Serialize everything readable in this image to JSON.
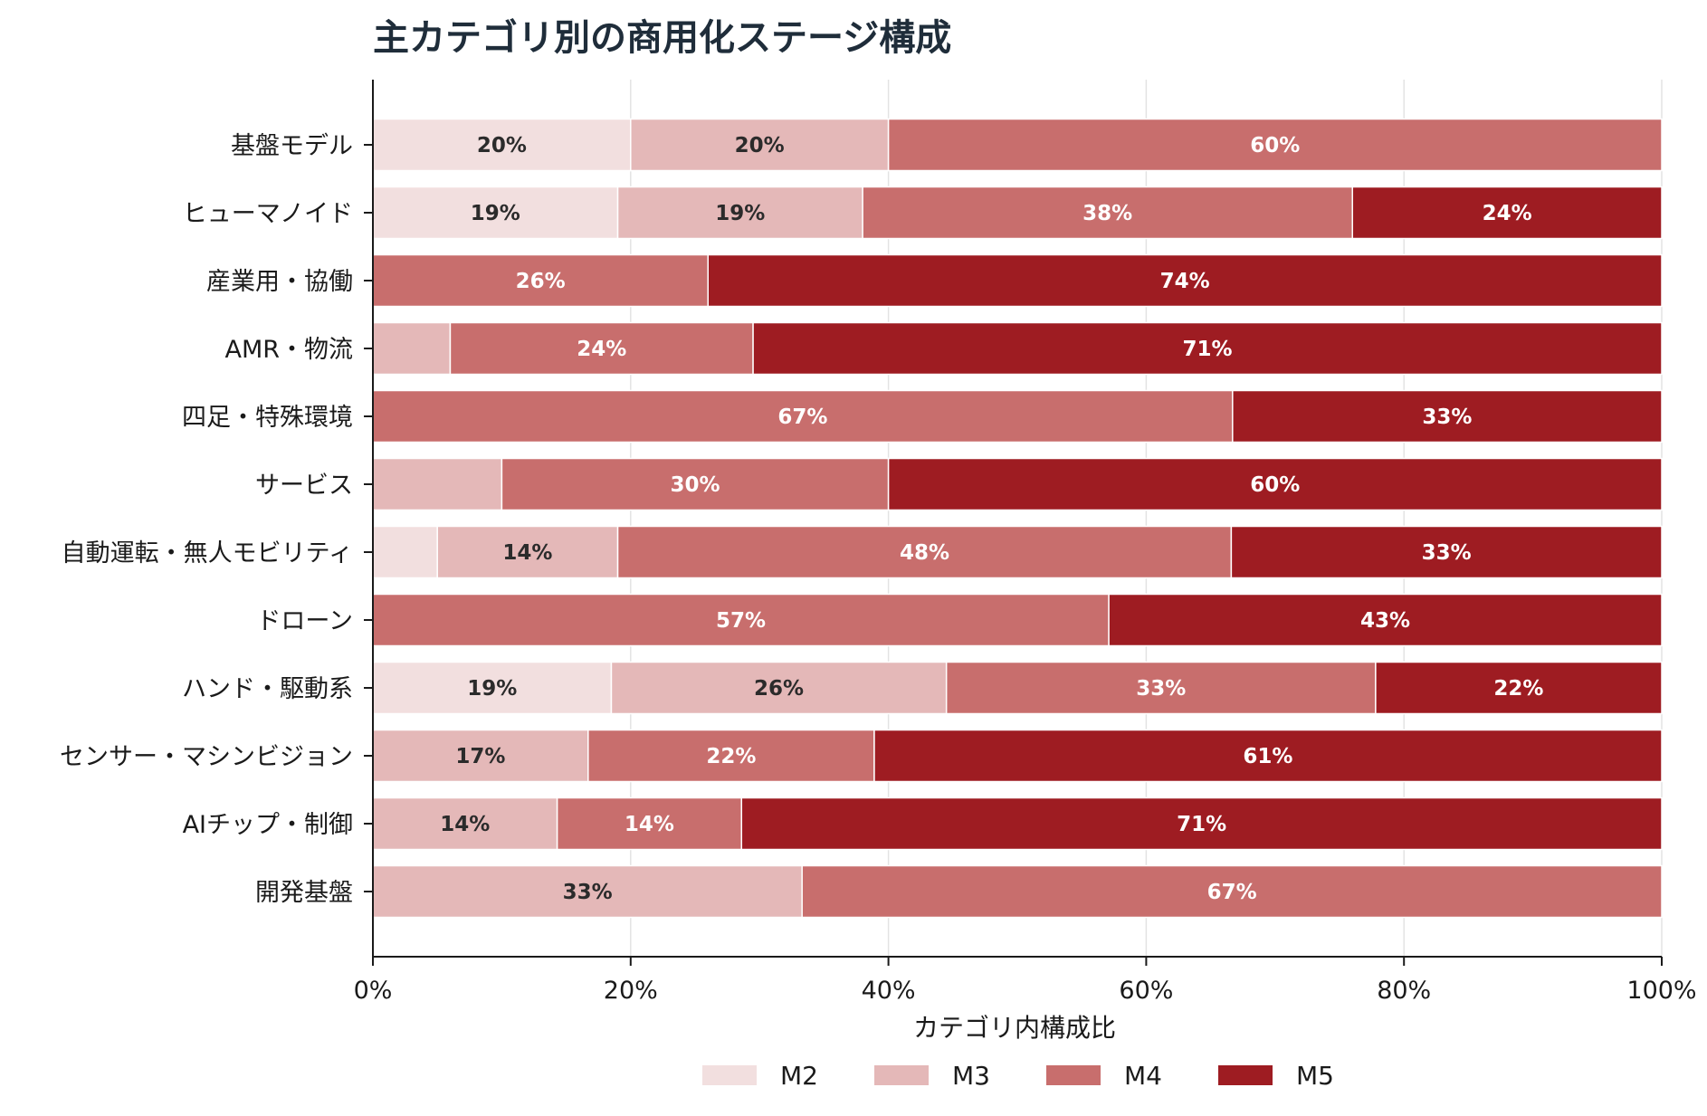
{
  "chart_data": {
    "type": "bar",
    "orientation": "horizontal",
    "stacked": true,
    "title": "主カテゴリ別の商用化ステージ構成",
    "xlabel": "カテゴリ内構成比",
    "ylabel": "",
    "xlim": [
      0,
      100
    ],
    "x_ticks": [
      "0%",
      "20%",
      "40%",
      "60%",
      "80%",
      "100%"
    ],
    "grid": true,
    "legend_position": "bottom",
    "categories": [
      "基盤モデル",
      "ヒューマノイド",
      "産業用・協働",
      "AMR・物流",
      "四足・特殊環境",
      "サービス",
      "自動運転・無人モビリティ",
      "ドローン",
      "ハンド・駆動系",
      "センサー・マシンビジョン",
      "AIチップ・制御",
      "開発基盤"
    ],
    "series": [
      {
        "name": "M2",
        "color": "#f2dfdf",
        "values": [
          20,
          19,
          0,
          0,
          0,
          0,
          5,
          0,
          18.5,
          0,
          0,
          0
        ],
        "labels": [
          "20%",
          "19%",
          "",
          "",
          "",
          "",
          "",
          "",
          "19%",
          "",
          "",
          ""
        ]
      },
      {
        "name": "M3",
        "color": "#e4b8b8",
        "values": [
          20,
          19,
          0,
          6,
          0,
          10,
          14,
          0,
          26,
          16.7,
          14.3,
          33.3
        ],
        "labels": [
          "20%",
          "19%",
          "",
          "",
          "",
          "",
          "14%",
          "",
          "26%",
          "17%",
          "14%",
          "33%"
        ]
      },
      {
        "name": "M4",
        "color": "#c86e6d",
        "values": [
          60,
          38,
          26,
          23.5,
          66.7,
          30,
          47.6,
          57.1,
          33.3,
          22.2,
          14.3,
          66.7
        ],
        "labels": [
          "60%",
          "38%",
          "26%",
          "24%",
          "67%",
          "30%",
          "48%",
          "57%",
          "33%",
          "22%",
          "14%",
          "67%"
        ]
      },
      {
        "name": "M5",
        "color": "#9e1c22",
        "values": [
          0,
          24,
          74,
          70.5,
          33.3,
          60,
          33.4,
          42.9,
          22.2,
          61.1,
          71.4,
          0
        ],
        "labels": [
          "",
          "24%",
          "74%",
          "71%",
          "33%",
          "60%",
          "33%",
          "43%",
          "22%",
          "61%",
          "71%",
          ""
        ]
      }
    ]
  }
}
